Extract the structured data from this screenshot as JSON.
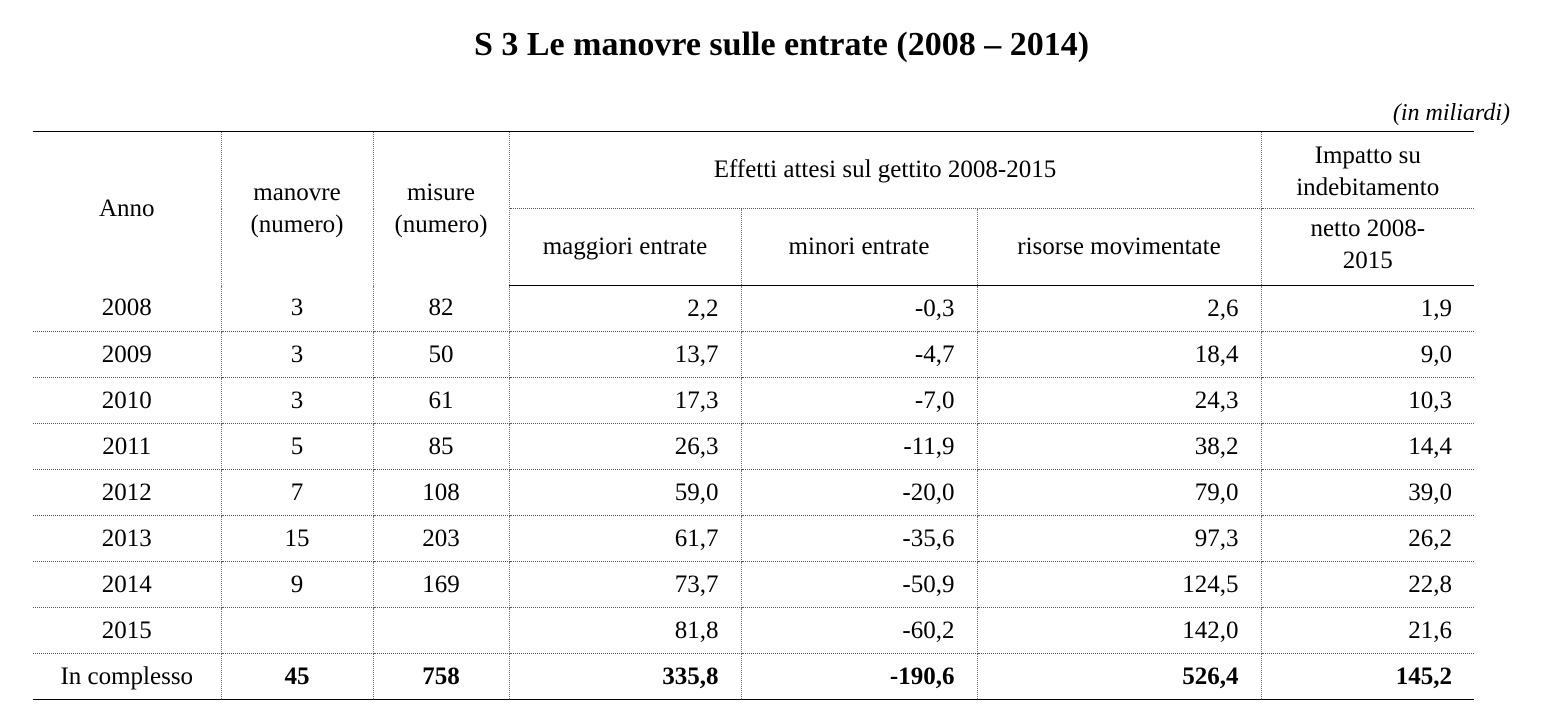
{
  "title": "S 3 Le manovre sulle entrate (2008 – 2014)",
  "unit_note": "(in miliardi)",
  "headers": {
    "anno": "Anno",
    "manovre_line1": "manovre",
    "manovre_line2": "(numero)",
    "misure_line1": "misure",
    "misure_line2": "(numero)",
    "effetti_group": "Effetti attesi sul gettito 2008-2015",
    "maggiori": "maggiori entrate",
    "minori": "minori entrate",
    "risorse": "risorse movimentate",
    "impatto_line1": "Impatto su",
    "impatto_line2": "indebitamento",
    "impatto_line3": "netto 2008-",
    "impatto_line4": "2015"
  },
  "rows": [
    {
      "anno": "2008",
      "manovre": "3",
      "misure": "82",
      "maggiori": "2,2",
      "minori": "-0,3",
      "risorse": "2,6",
      "impatto": "1,9"
    },
    {
      "anno": "2009",
      "manovre": "3",
      "misure": "50",
      "maggiori": "13,7",
      "minori": "-4,7",
      "risorse": "18,4",
      "impatto": "9,0"
    },
    {
      "anno": "2010",
      "manovre": "3",
      "misure": "61",
      "maggiori": "17,3",
      "minori": "-7,0",
      "risorse": "24,3",
      "impatto": "10,3"
    },
    {
      "anno": "2011",
      "manovre": "5",
      "misure": "85",
      "maggiori": "26,3",
      "minori": "-11,9",
      "risorse": "38,2",
      "impatto": "14,4"
    },
    {
      "anno": "2012",
      "manovre": "7",
      "misure": "108",
      "maggiori": "59,0",
      "minori": "-20,0",
      "risorse": "79,0",
      "impatto": "39,0"
    },
    {
      "anno": "2013",
      "manovre": "15",
      "misure": "203",
      "maggiori": "61,7",
      "minori": "-35,6",
      "risorse": "97,3",
      "impatto": "26,2"
    },
    {
      "anno": "2014",
      "manovre": "9",
      "misure": "169",
      "maggiori": "73,7",
      "minori": "-50,9",
      "risorse": "124,5",
      "impatto": "22,8"
    },
    {
      "anno": "2015",
      "manovre": "",
      "misure": "",
      "maggiori": "81,8",
      "minori": "-60,2",
      "risorse": "142,0",
      "impatto": "21,6"
    }
  ],
  "total": {
    "anno": "In complesso",
    "manovre": "45",
    "misure": "758",
    "maggiori": "335,8",
    "minori": "-190,6",
    "risorse": "526,4",
    "impatto": "145,2"
  }
}
